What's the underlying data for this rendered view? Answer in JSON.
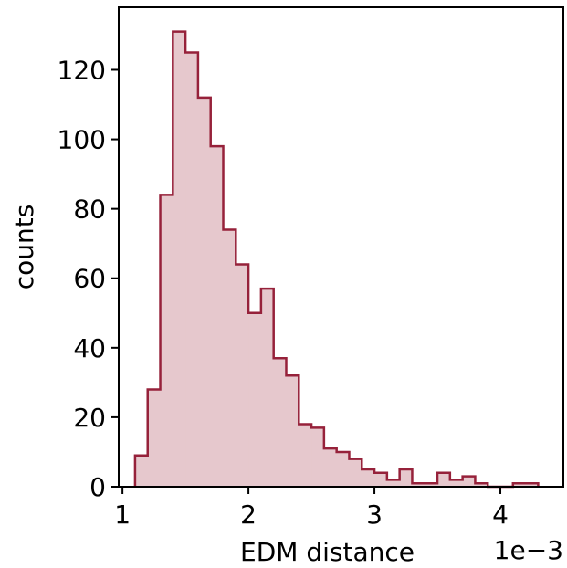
{
  "chart_data": {
    "type": "histogram",
    "xlabel": "EDM distance",
    "ylabel": "counts",
    "x_offset_label": "1e−3",
    "x_scale_factor": 0.001,
    "bin_width": 0.1,
    "bins_x_start": [
      1.1,
      1.2,
      1.3,
      1.4,
      1.5,
      1.6,
      1.7,
      1.8,
      1.9,
      2.0,
      2.1,
      2.2,
      2.3,
      2.4,
      2.5,
      2.6,
      2.7,
      2.8,
      2.9,
      3.0,
      3.1,
      3.2,
      3.3,
      3.4,
      3.5,
      3.6,
      3.7,
      3.8,
      3.9,
      4.0,
      4.1,
      4.2,
      4.3
    ],
    "counts": [
      9,
      28,
      84,
      131,
      125,
      112,
      98,
      74,
      64,
      50,
      57,
      37,
      32,
      18,
      17,
      11,
      10,
      8,
      5,
      4,
      2,
      5,
      1,
      1,
      4,
      2,
      3,
      1,
      0,
      0,
      1,
      1
    ],
    "xlim": [
      0.97,
      4.5
    ],
    "ylim": [
      0,
      138
    ],
    "xticks": [
      1,
      2,
      3,
      4
    ],
    "xtick_labels": [
      "1",
      "2",
      "3",
      "4"
    ],
    "yticks": [
      0,
      20,
      40,
      60,
      80,
      100,
      120
    ],
    "ytick_labels": [
      "0",
      "20",
      "40",
      "60",
      "80",
      "100",
      "120"
    ],
    "fill_color": "#e6c8cd",
    "edge_color": "#96213a",
    "grid": false
  }
}
